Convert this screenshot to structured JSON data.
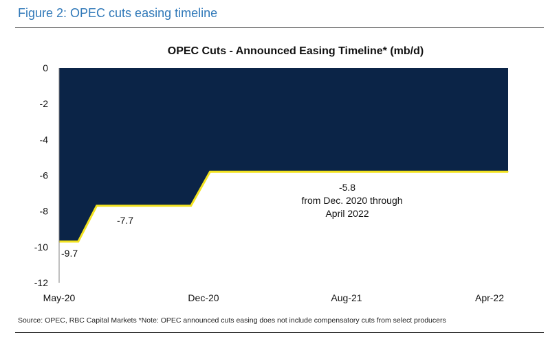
{
  "figure": {
    "title": "Figure 2: OPEC cuts easing timeline",
    "source": "Source: OPEC, RBC Capital Markets *Note: OPEC announced cuts easing does not include compensatory cuts from select producers"
  },
  "chart_data": {
    "type": "area",
    "title": "OPEC Cuts - Announced Easing Timeline* (mb/d)",
    "xlabel": "",
    "ylabel": "",
    "x_ticks": [
      "May-20",
      "Dec-20",
      "Aug-21",
      "Apr-22"
    ],
    "y_ticks": [
      0,
      -2,
      -4,
      -6,
      -8,
      -10,
      -12
    ],
    "ylim": [
      -12,
      0
    ],
    "xlim": [
      "2020-05-01",
      "2022-04-30"
    ],
    "points": [
      {
        "x": "2020-05-01",
        "y": -9.7
      },
      {
        "x": "2020-06-01",
        "y": -9.7
      },
      {
        "x": "2020-07-01",
        "y": -7.7
      },
      {
        "x": "2020-12-01",
        "y": -7.7
      },
      {
        "x": "2021-01-01",
        "y": -5.8
      },
      {
        "x": "2022-04-30",
        "y": -5.8
      }
    ],
    "annotations": [
      {
        "text": "-9.7"
      },
      {
        "text": "-7.7"
      },
      {
        "text": "-5.8"
      },
      {
        "text": "from Dec. 2020 through"
      },
      {
        "text": "April 2022"
      }
    ],
    "colors": {
      "fill": "#0b2447",
      "line": "#f2e21f"
    },
    "grid": false
  }
}
